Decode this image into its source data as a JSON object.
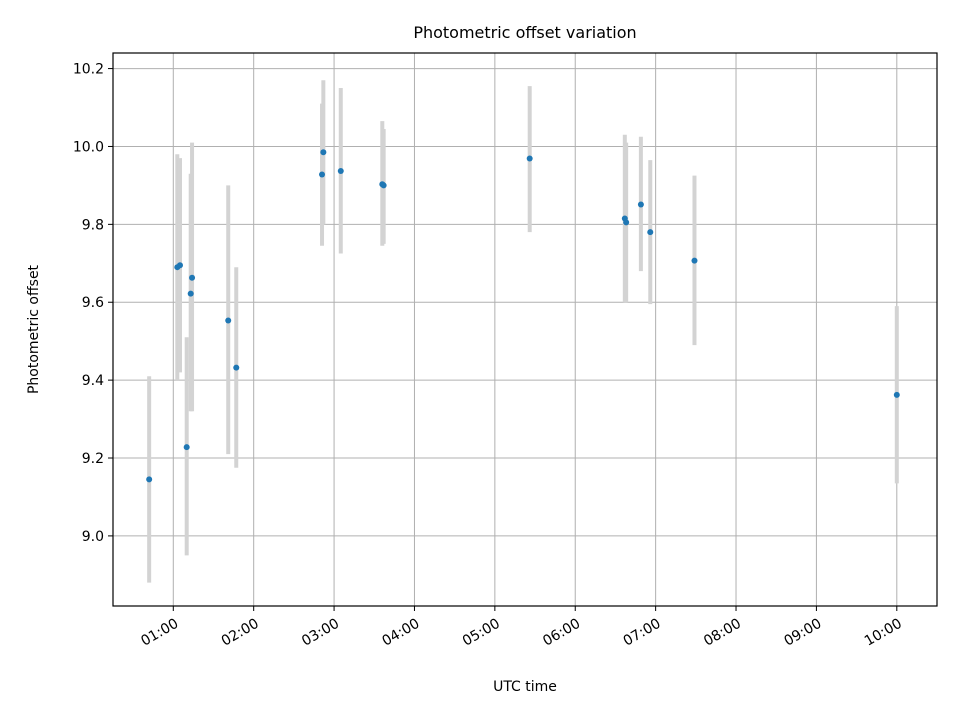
{
  "chart_data": {
    "type": "scatter",
    "title": "Photometric offset variation",
    "xlabel": "UTC time",
    "ylabel": "Photometric offset",
    "xlim": [
      "00:15",
      "10:30"
    ],
    "ylim": [
      8.82,
      10.24
    ],
    "grid": true,
    "x_ticks": [
      "01:00",
      "02:00",
      "03:00",
      "04:00",
      "05:00",
      "06:00",
      "07:00",
      "08:00",
      "09:00",
      "10:00"
    ],
    "y_ticks": [
      "9.0",
      "9.2",
      "9.4",
      "9.6",
      "9.8",
      "10.0",
      "10.2"
    ],
    "colors": {
      "point": "#1f77b4",
      "errorbar": "#d3d3d3",
      "grid": "#b0b0b0"
    },
    "points": [
      {
        "x": "00:42",
        "y": 9.145,
        "err_low": 8.88,
        "err_high": 9.41
      },
      {
        "x": "01:03",
        "y": 9.69,
        "err_low": 9.4,
        "err_high": 9.98
      },
      {
        "x": "01:05",
        "y": 9.695,
        "err_low": 9.42,
        "err_high": 9.97
      },
      {
        "x": "01:10",
        "y": 9.228,
        "err_low": 8.95,
        "err_high": 9.51
      },
      {
        "x": "01:13",
        "y": 9.622,
        "err_low": 9.32,
        "err_high": 9.93
      },
      {
        "x": "01:14",
        "y": 9.663,
        "err_low": 9.32,
        "err_high": 10.01
      },
      {
        "x": "01:41",
        "y": 9.553,
        "err_low": 9.21,
        "err_high": 9.9
      },
      {
        "x": "01:47",
        "y": 9.432,
        "err_low": 9.175,
        "err_high": 9.69
      },
      {
        "x": "02:51",
        "y": 9.928,
        "err_low": 9.745,
        "err_high": 10.11
      },
      {
        "x": "02:52",
        "y": 9.985,
        "err_low": 9.8,
        "err_high": 10.17
      },
      {
        "x": "03:05",
        "y": 9.937,
        "err_low": 9.725,
        "err_high": 10.15
      },
      {
        "x": "03:36",
        "y": 9.903,
        "err_low": 9.745,
        "err_high": 10.065
      },
      {
        "x": "03:37",
        "y": 9.9,
        "err_low": 9.75,
        "err_high": 10.045
      },
      {
        "x": "05:26",
        "y": 9.969,
        "err_low": 9.78,
        "err_high": 10.155
      },
      {
        "x": "06:37",
        "y": 9.815,
        "err_low": 9.6,
        "err_high": 10.03
      },
      {
        "x": "06:38",
        "y": 9.805,
        "err_low": 9.6,
        "err_high": 10.01
      },
      {
        "x": "06:49",
        "y": 9.851,
        "err_low": 9.68,
        "err_high": 10.025
      },
      {
        "x": "06:56",
        "y": 9.78,
        "err_low": 9.595,
        "err_high": 9.965
      },
      {
        "x": "07:29",
        "y": 9.707,
        "err_low": 9.49,
        "err_high": 9.925
      },
      {
        "x": "10:00",
        "y": 9.362,
        "err_low": 9.135,
        "err_high": 9.59
      }
    ]
  }
}
